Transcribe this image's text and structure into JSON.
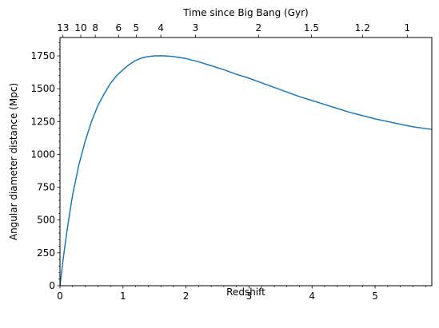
{
  "chart_data": {
    "type": "line",
    "title": "",
    "xlabel": "Redshift",
    "ylabel": "Angular diameter distance (Mpc)",
    "top_xlabel": "Time since Big Bang (Gyr)",
    "xlim": [
      0,
      5.9
    ],
    "ylim": [
      0,
      1890
    ],
    "x_ticks": [
      0,
      1,
      2,
      3,
      4,
      5
    ],
    "y_ticks": [
      0,
      250,
      500,
      750,
      1000,
      1250,
      1500,
      1750
    ],
    "top_ticks": [
      {
        "label": "13",
        "z": 0.047
      },
      {
        "label": "10",
        "z": 0.33
      },
      {
        "label": "8",
        "z": 0.56
      },
      {
        "label": "6",
        "z": 0.93
      },
      {
        "label": "5",
        "z": 1.21
      },
      {
        "label": "4",
        "z": 1.6
      },
      {
        "label": "3",
        "z": 2.15
      },
      {
        "label": "2",
        "z": 3.15
      },
      {
        "label": "1.5",
        "z": 3.99
      },
      {
        "label": "1.2",
        "z": 4.8
      },
      {
        "label": "1",
        "z": 5.51
      }
    ],
    "grid": false,
    "line_color": "#1f77b4",
    "series": [
      {
        "x": [
          0,
          0.05,
          0.1,
          0.15,
          0.2,
          0.3,
          0.4,
          0.5,
          0.6,
          0.7,
          0.8,
          0.9,
          1.0,
          1.1,
          1.2,
          1.3,
          1.4,
          1.5,
          1.6,
          1.7,
          1.8,
          2.0,
          2.2,
          2.4,
          2.6,
          2.8,
          3.0,
          3.2,
          3.4,
          3.6,
          3.8,
          4.0,
          4.2,
          4.4,
          4.6,
          4.8,
          5.0,
          5.2,
          5.4,
          5.6,
          5.9
        ],
        "y": [
          0,
          200,
          380,
          540,
          690,
          920,
          1100,
          1250,
          1370,
          1460,
          1540,
          1600,
          1645,
          1685,
          1715,
          1735,
          1745,
          1750,
          1751,
          1749,
          1745,
          1730,
          1705,
          1675,
          1645,
          1610,
          1580,
          1545,
          1510,
          1475,
          1440,
          1410,
          1380,
          1350,
          1320,
          1295,
          1270,
          1250,
          1230,
          1210,
          1190
        ]
      }
    ]
  }
}
